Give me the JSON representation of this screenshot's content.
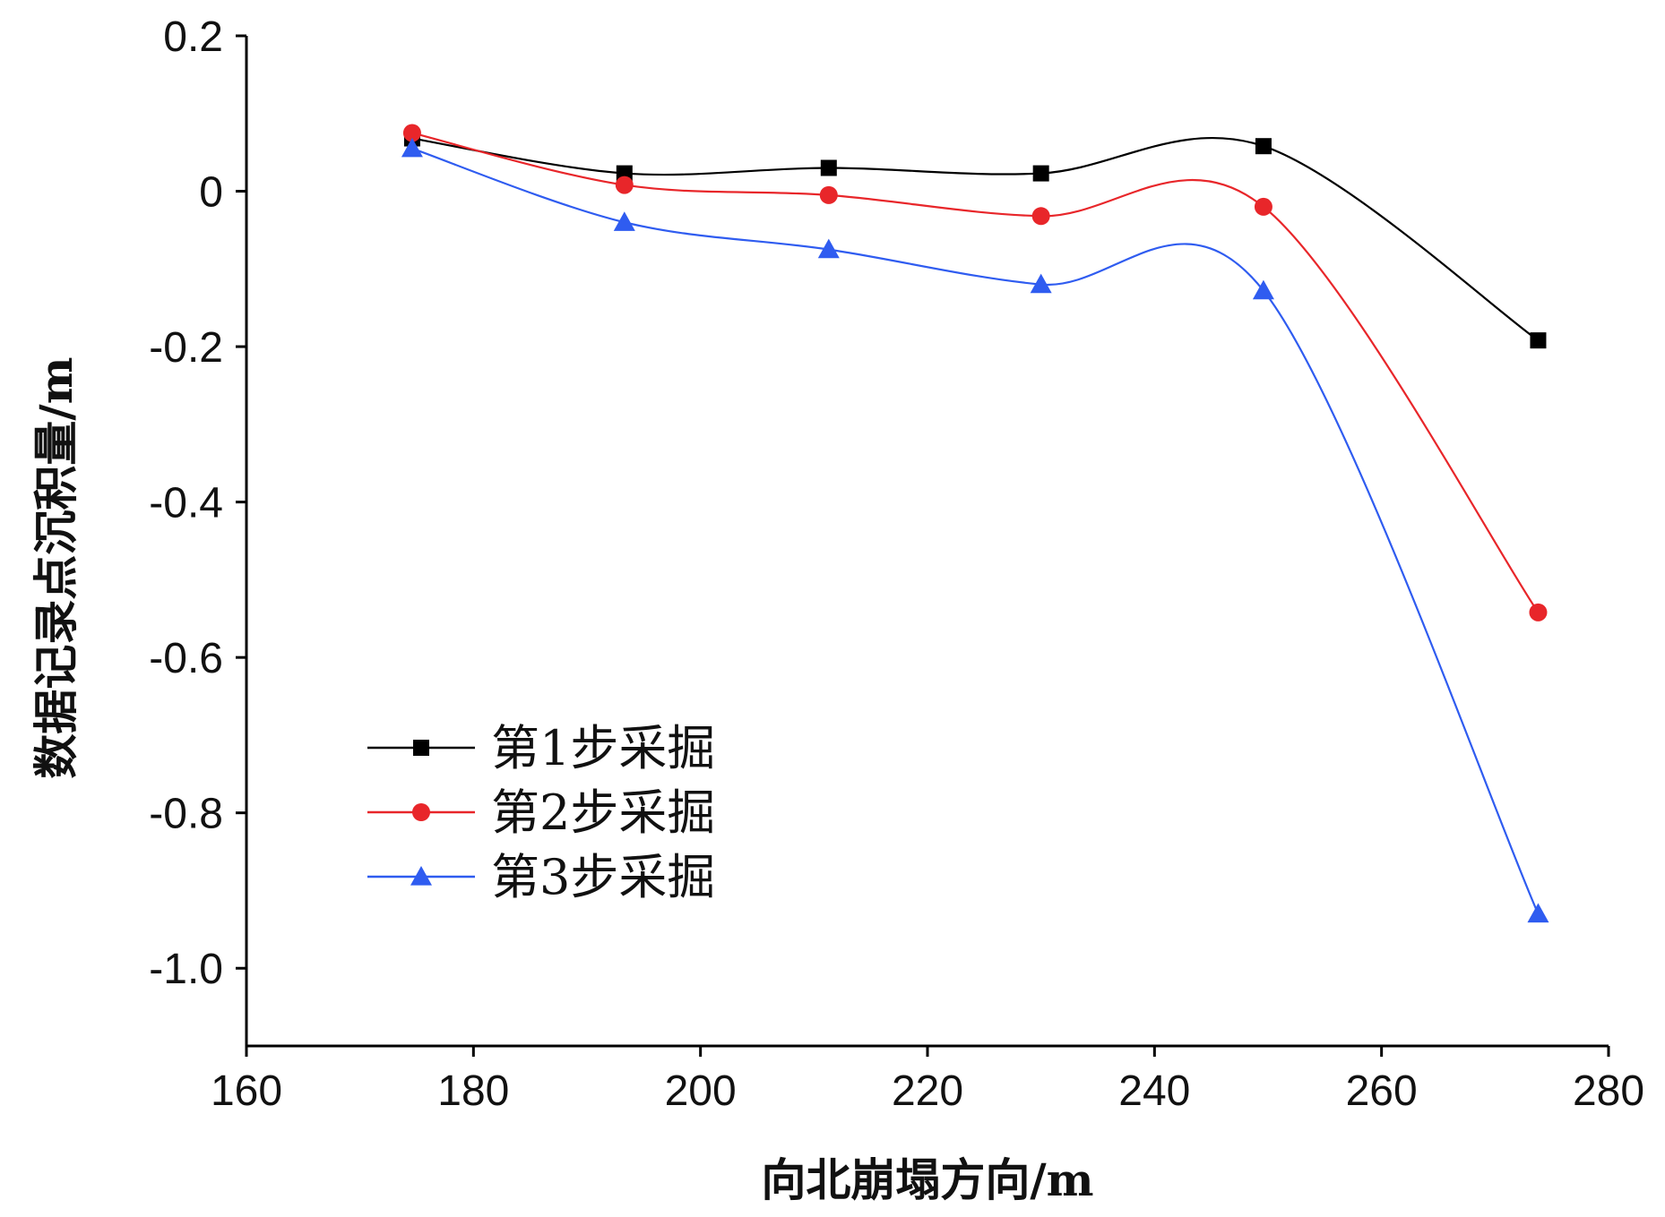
{
  "chart_data": {
    "type": "line",
    "title": "",
    "xlabel": "向北崩塌方向/m",
    "ylabel": "数据记录点沉积量/m",
    "xlim": [
      160,
      280
    ],
    "ylim": [
      -1.1,
      0.2
    ],
    "xticks": [
      160,
      180,
      200,
      220,
      240,
      260,
      280
    ],
    "xtick_labels": [
      "160",
      "180",
      "200",
      "220",
      "240",
      "260",
      "280"
    ],
    "yticks": [
      0.2,
      0,
      -0.2,
      -0.4,
      -0.6,
      -0.8,
      -1.0
    ],
    "ytick_labels": [
      "0.2",
      "0",
      "-0.2",
      "-0.4",
      "-0.6",
      "-0.8",
      "-1.0"
    ],
    "grid": false,
    "legend_position": "lower-left",
    "x": [
      174.6,
      193.3,
      211.3,
      230.0,
      249.6,
      273.8
    ],
    "series": [
      {
        "name": "第1步采掘",
        "color": "#000000",
        "marker": "square",
        "values": [
          0.068,
          0.023,
          0.03,
          0.023,
          0.058,
          -0.192
        ]
      },
      {
        "name": "第2步采掘",
        "color": "#e8262a",
        "marker": "circle",
        "values": [
          0.075,
          0.008,
          -0.005,
          -0.032,
          -0.02,
          -0.542
        ]
      },
      {
        "name": "第3步采掘",
        "color": "#2f5cf0",
        "marker": "triangle",
        "values": [
          0.055,
          -0.04,
          -0.075,
          -0.12,
          -0.128,
          -0.93
        ]
      }
    ]
  }
}
